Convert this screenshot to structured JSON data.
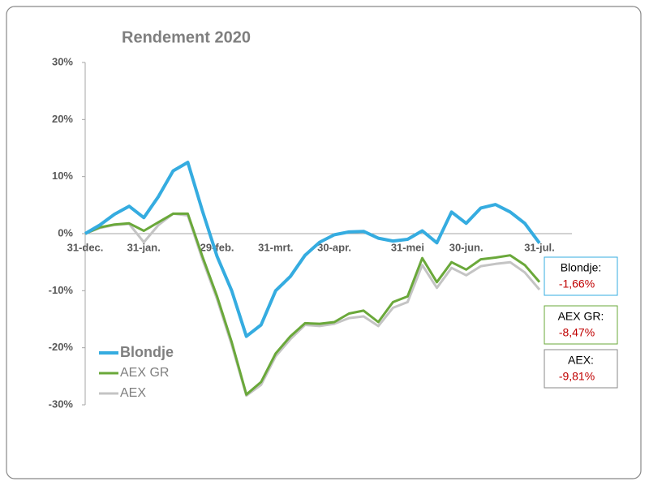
{
  "chart_data": {
    "type": "line",
    "title": "Rendement 2020",
    "categories": [
      "31-dec.",
      null,
      null,
      null,
      "31-jan.",
      null,
      null,
      null,
      null,
      "29-feb.",
      null,
      null,
      null,
      "31-mrt.",
      null,
      null,
      null,
      "30-apr.",
      null,
      null,
      null,
      null,
      "31-mei",
      null,
      null,
      null,
      "30-jun.",
      null,
      null,
      null,
      null,
      "31-jul."
    ],
    "series": [
      {
        "name": "Blondje",
        "color": "#35ace0",
        "values": [
          0,
          1.5,
          3.4,
          4.8,
          2.8,
          6.5,
          11,
          12.5,
          4,
          -4,
          -10,
          -18,
          -16,
          -10,
          -7.5,
          -3.8,
          -1.5,
          -0.2,
          0.3,
          0.4,
          -0.8,
          -1.3,
          -1.0,
          0.5,
          -1.6,
          3.8,
          1.8,
          4.5,
          5.1,
          3.8,
          1.8,
          -1.66
        ]
      },
      {
        "name": "AEX GR",
        "color": "#6aa83a",
        "values": [
          0,
          1.1,
          1.6,
          1.8,
          0.5,
          2,
          3.5,
          3.5,
          -4,
          -11,
          -19,
          -28.2,
          -26,
          -21,
          -18,
          -15.7,
          -15.8,
          -15.5,
          -14,
          -13.5,
          -15.5,
          -12,
          -11,
          -4.3,
          -8.5,
          -5,
          -6.3,
          -4.5,
          -4.2,
          -3.8,
          -5.5,
          -8.47
        ]
      },
      {
        "name": "AEX",
        "color": "#c4c4c4",
        "values": [
          0,
          1.0,
          1.5,
          1.7,
          -1.5,
          1.5,
          3.5,
          3.2,
          -4.5,
          -11.5,
          -19.5,
          -28.4,
          -26.5,
          -21.5,
          -18.5,
          -16,
          -16.2,
          -15.8,
          -14.8,
          -14.5,
          -16.2,
          -13,
          -12,
          -5.5,
          -9.5,
          -6,
          -7.3,
          -5.7,
          -5.3,
          -5.0,
          -6.8,
          -9.81
        ]
      }
    ],
    "ylim": [
      -30,
      30
    ],
    "yticks": [
      {
        "value": -30,
        "label": "-30%"
      },
      {
        "value": -20,
        "label": "-20%"
      },
      {
        "value": -10,
        "label": "-10%"
      },
      {
        "value": 0,
        "label": "0%"
      },
      {
        "value": 10,
        "label": "10%"
      },
      {
        "value": 20,
        "label": "20%"
      },
      {
        "value": 30,
        "label": "30%"
      }
    ],
    "legend": "lower left",
    "annotations": [
      {
        "label": "Blondje:",
        "value": "-1,66%",
        "color": "#35ace0"
      },
      {
        "label": "AEX GR:",
        "value": "-8,47%",
        "color": "#6aa83a"
      },
      {
        "label": "AEX:",
        "value": "-9,81%",
        "color": "#8a8a8a"
      }
    ]
  }
}
